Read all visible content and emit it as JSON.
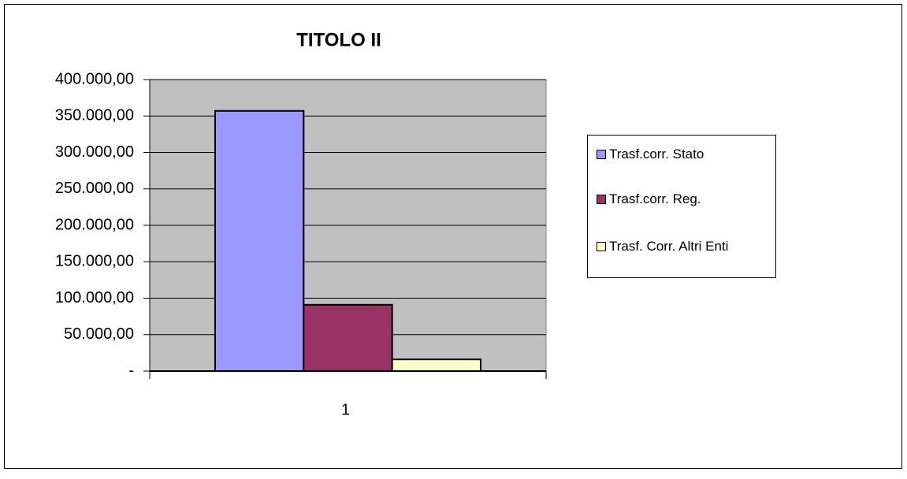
{
  "chart_data": {
    "type": "bar",
    "title": "TITOLO II",
    "categories": [
      "1"
    ],
    "series": [
      {
        "name": "Trasf.corr. Stato",
        "color": "#9999ff",
        "values": [
          357000
        ]
      },
      {
        "name": "Trasf.corr. Reg.",
        "color": "#993366",
        "values": [
          91000
        ]
      },
      {
        "name": "Trasf. Corr. Altri Enti",
        "color": "#ffffcc",
        "values": [
          16000
        ]
      }
    ],
    "ylim": [
      0,
      400000
    ],
    "yticks": [
      {
        "value": 0,
        "label": "-"
      },
      {
        "value": 50000,
        "label": "50.000,00"
      },
      {
        "value": 100000,
        "label": "100.000,00"
      },
      {
        "value": 150000,
        "label": "150.000,00"
      },
      {
        "value": 200000,
        "label": "200.000,00"
      },
      {
        "value": 250000,
        "label": "250.000,00"
      },
      {
        "value": 300000,
        "label": "300.000,00"
      },
      {
        "value": 350000,
        "label": "350.000,00"
      },
      {
        "value": 400000,
        "label": "400.000,00"
      }
    ],
    "grid": true,
    "legend": "right",
    "plot_background": "#c0c0c0"
  }
}
